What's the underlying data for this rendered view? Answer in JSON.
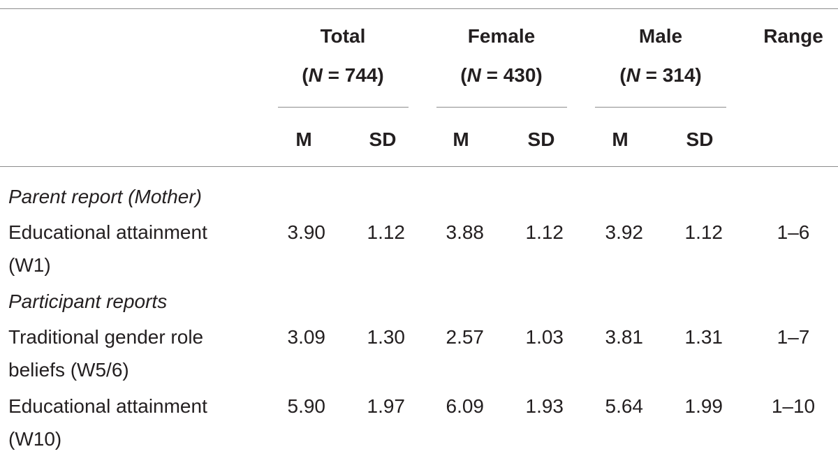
{
  "columns": {
    "groups": [
      {
        "title": "Total",
        "sample": [
          "(",
          "N",
          " = 744)"
        ]
      },
      {
        "title": "Female",
        "sample": [
          "(",
          "N",
          " = 430)"
        ]
      },
      {
        "title": "Male",
        "sample": [
          "(",
          "N",
          " = 314)"
        ]
      }
    ],
    "range": "Range",
    "subheaders": [
      "M",
      "SD",
      "M",
      "SD",
      "M",
      "SD"
    ]
  },
  "sections": [
    {
      "title": "Parent report (Mother)",
      "rows": [
        {
          "label": [
            "Educational attainment",
            "(W1)"
          ],
          "values": [
            "3.90",
            "1.12",
            "3.88",
            "1.12",
            "3.92",
            "1.12"
          ],
          "range": "1–6"
        }
      ]
    },
    {
      "title": "Participant reports",
      "rows": [
        {
          "label": [
            "Traditional gender role",
            "beliefs (W5/6)"
          ],
          "values": [
            "3.09",
            "1.30",
            "2.57",
            "1.03",
            "3.81",
            "1.31"
          ],
          "range": "1–7"
        },
        {
          "label": [
            "Educational attainment",
            "(W10)"
          ],
          "values": [
            "5.90",
            "1.97",
            "6.09",
            "1.93",
            "5.64",
            "1.99"
          ],
          "range": "1–10"
        }
      ]
    }
  ]
}
